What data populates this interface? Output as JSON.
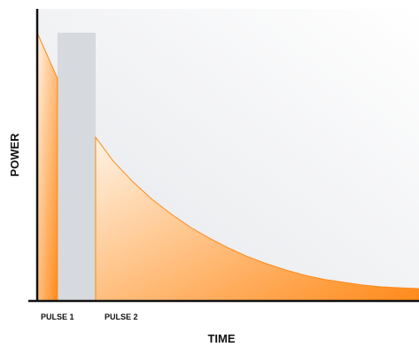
{
  "chart_data": {
    "type": "area",
    "title": "",
    "xlabel": "TIME",
    "ylabel": "POWER",
    "xlim": [
      0,
      100
    ],
    "ylim": [
      0,
      100
    ],
    "grid": false,
    "legend": "none",
    "colors": {
      "fill_light": "#fff3e4",
      "fill_dark": "#ff8a1a",
      "gap": "#d6d9de",
      "background_light": "#ffffff",
      "background_dark": "#e4e6ea",
      "axis": "#111111"
    },
    "pulse_labels": [
      "PULSE 1",
      "PULSE 2"
    ],
    "series": [
      {
        "x": [
          0,
          5.3
        ],
        "y": [
          100,
          83
        ]
      },
      {
        "x": [
          15.3,
          20,
          25,
          30,
          35,
          40,
          45,
          50,
          55,
          60,
          65,
          70,
          75,
          80,
          85,
          90,
          95,
          100
        ],
        "y": [
          61,
          52,
          44.5,
          38,
          32.5,
          27.6,
          23.5,
          19.8,
          16.6,
          13.9,
          11.6,
          9.6,
          8.1,
          7.0,
          6.0,
          5.3,
          4.9,
          4.6
        ]
      }
    ]
  }
}
